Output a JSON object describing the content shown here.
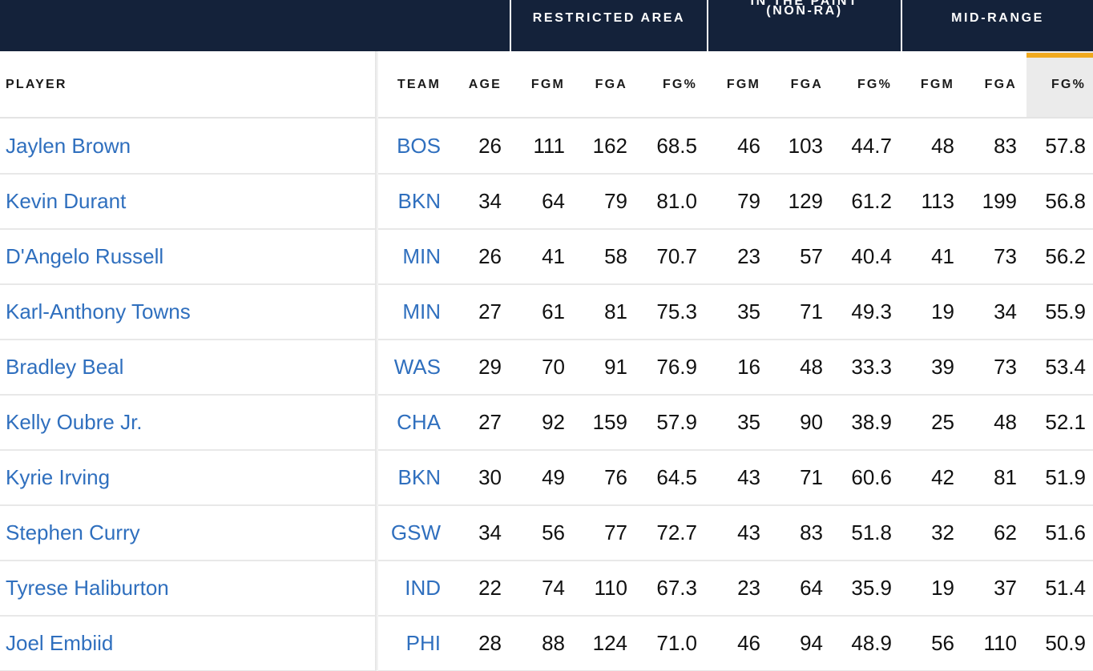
{
  "groups": [
    {
      "label": "",
      "lines": []
    },
    {
      "label": "RESTRICTED AREA",
      "lines": [
        "RESTRICTED AREA"
      ]
    },
    {
      "label": "IN THE PAINT (NON-RA)",
      "lines": [
        "IN THE PAINT",
        "(NON-RA)"
      ]
    },
    {
      "label": "MID-RANGE",
      "lines": [
        "MID-RANGE"
      ]
    }
  ],
  "columns": [
    "PLAYER",
    "TEAM",
    "AGE",
    "FGM",
    "FGA",
    "FG%",
    "FGM",
    "FGA",
    "FG%",
    "FGM",
    "FGA",
    "FG%"
  ],
  "sorted_column_index": 11,
  "colors": {
    "header_bg": "#14223a",
    "link": "#2f6fbe",
    "sort_accent": "#f0a91e"
  },
  "rows": [
    {
      "player": "Jaylen Brown",
      "team": "BOS",
      "age": "26",
      "ra_fgm": "111",
      "ra_fga": "162",
      "ra_fgp": "68.5",
      "paint_fgm": "46",
      "paint_fga": "103",
      "paint_fgp": "44.7",
      "mid_fgm": "48",
      "mid_fga": "83",
      "mid_fgp": "57.8"
    },
    {
      "player": "Kevin Durant",
      "team": "BKN",
      "age": "34",
      "ra_fgm": "64",
      "ra_fga": "79",
      "ra_fgp": "81.0",
      "paint_fgm": "79",
      "paint_fga": "129",
      "paint_fgp": "61.2",
      "mid_fgm": "113",
      "mid_fga": "199",
      "mid_fgp": "56.8"
    },
    {
      "player": "D'Angelo Russell",
      "team": "MIN",
      "age": "26",
      "ra_fgm": "41",
      "ra_fga": "58",
      "ra_fgp": "70.7",
      "paint_fgm": "23",
      "paint_fga": "57",
      "paint_fgp": "40.4",
      "mid_fgm": "41",
      "mid_fga": "73",
      "mid_fgp": "56.2"
    },
    {
      "player": "Karl-Anthony Towns",
      "team": "MIN",
      "age": "27",
      "ra_fgm": "61",
      "ra_fga": "81",
      "ra_fgp": "75.3",
      "paint_fgm": "35",
      "paint_fga": "71",
      "paint_fgp": "49.3",
      "mid_fgm": "19",
      "mid_fga": "34",
      "mid_fgp": "55.9"
    },
    {
      "player": "Bradley Beal",
      "team": "WAS",
      "age": "29",
      "ra_fgm": "70",
      "ra_fga": "91",
      "ra_fgp": "76.9",
      "paint_fgm": "16",
      "paint_fga": "48",
      "paint_fgp": "33.3",
      "mid_fgm": "39",
      "mid_fga": "73",
      "mid_fgp": "53.4"
    },
    {
      "player": "Kelly Oubre Jr.",
      "team": "CHA",
      "age": "27",
      "ra_fgm": "92",
      "ra_fga": "159",
      "ra_fgp": "57.9",
      "paint_fgm": "35",
      "paint_fga": "90",
      "paint_fgp": "38.9",
      "mid_fgm": "25",
      "mid_fga": "48",
      "mid_fgp": "52.1"
    },
    {
      "player": "Kyrie Irving",
      "team": "BKN",
      "age": "30",
      "ra_fgm": "49",
      "ra_fga": "76",
      "ra_fgp": "64.5",
      "paint_fgm": "43",
      "paint_fga": "71",
      "paint_fgp": "60.6",
      "mid_fgm": "42",
      "mid_fga": "81",
      "mid_fgp": "51.9"
    },
    {
      "player": "Stephen Curry",
      "team": "GSW",
      "age": "34",
      "ra_fgm": "56",
      "ra_fga": "77",
      "ra_fgp": "72.7",
      "paint_fgm": "43",
      "paint_fga": "83",
      "paint_fgp": "51.8",
      "mid_fgm": "32",
      "mid_fga": "62",
      "mid_fgp": "51.6"
    },
    {
      "player": "Tyrese Haliburton",
      "team": "IND",
      "age": "22",
      "ra_fgm": "74",
      "ra_fga": "110",
      "ra_fgp": "67.3",
      "paint_fgm": "23",
      "paint_fga": "64",
      "paint_fgp": "35.9",
      "mid_fgm": "19",
      "mid_fga": "37",
      "mid_fgp": "51.4"
    },
    {
      "player": "Joel Embiid",
      "team": "PHI",
      "age": "28",
      "ra_fgm": "88",
      "ra_fga": "124",
      "ra_fgp": "71.0",
      "paint_fgm": "46",
      "paint_fga": "94",
      "paint_fgp": "48.9",
      "mid_fgm": "56",
      "mid_fga": "110",
      "mid_fgp": "50.9"
    }
  ]
}
